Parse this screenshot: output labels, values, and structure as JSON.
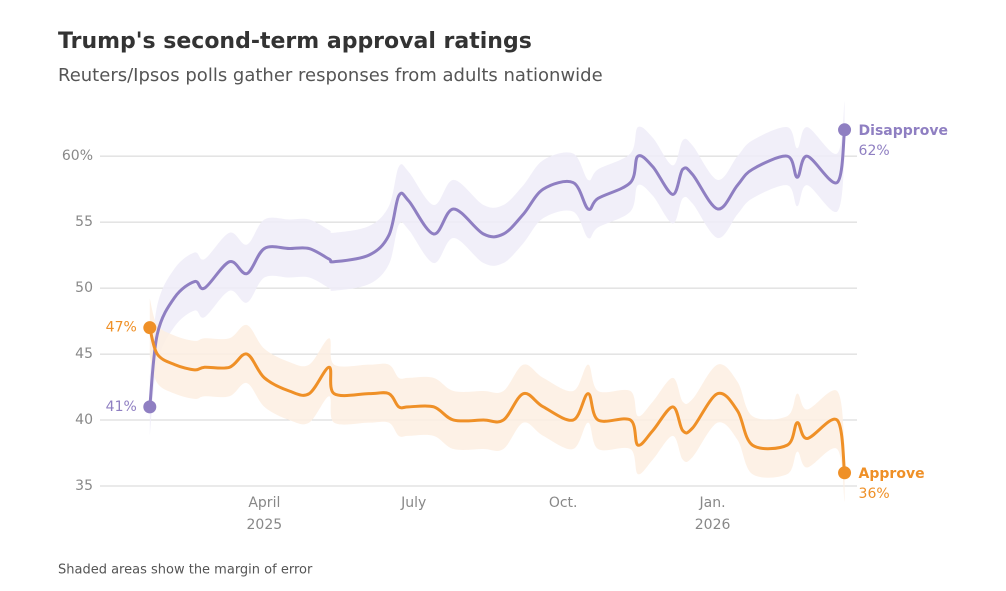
{
  "chart_data": {
    "type": "line",
    "title": "Trump's second-term approval ratings",
    "subtitle": "Reuters/Ipsos polls gather responses from adults nationwide",
    "note": "Shaded areas show the margin of error",
    "x": [
      1.7,
      1.85,
      2.2,
      2.6,
      2.8,
      3.3,
      3.65,
      4.0,
      4.5,
      4.9,
      5.3,
      5.4,
      6.1,
      6.5,
      6.7,
      6.9,
      7.4,
      7.8,
      8.4,
      8.8,
      9.2,
      9.6,
      10.2,
      10.5,
      10.7,
      11.35,
      11.5,
      11.8,
      12.2,
      12.4,
      12.6,
      13.1,
      13.5,
      13.8,
      14.5,
      14.7,
      14.9,
      15.5,
      15.65
    ],
    "xlim": [
      0.7,
      15.9
    ],
    "xticks": [
      {
        "value": 4,
        "label": "April 2025"
      },
      {
        "value": 7,
        "label": "July"
      },
      {
        "value": 10,
        "label": "Oct."
      },
      {
        "value": 13,
        "label": "Jan. 2026"
      }
    ],
    "ylim": [
      35,
      63.5
    ],
    "yticks": [
      35,
      40,
      45,
      50,
      55,
      {
        "value": 60,
        "label": "60%"
      }
    ],
    "grid": true,
    "series": [
      {
        "name": "Disapprove",
        "color": "#8f7fc2",
        "band_color": "#efecf8",
        "error": 2.2,
        "values": [
          41,
          46.5,
          49.3,
          50.5,
          50,
          52,
          51.1,
          53,
          53,
          53,
          52.2,
          52,
          52.5,
          54,
          57,
          56.6,
          54.1,
          56,
          54.1,
          54.1,
          55.6,
          57.5,
          58,
          56,
          56.8,
          58,
          60,
          59.2,
          57.1,
          59,
          58.6,
          56,
          57.8,
          59,
          60,
          58.4,
          60,
          58,
          62
        ],
        "value_labels": [
          "41%",
          null,
          null,
          null,
          null,
          null,
          null,
          null,
          null,
          null,
          null,
          null,
          null,
          null,
          null,
          null,
          null,
          null,
          null,
          null,
          null,
          null,
          null,
          null,
          null,
          null,
          null,
          null,
          null,
          null,
          null,
          null,
          null,
          null,
          null,
          null,
          null,
          null,
          "62%"
        ]
      },
      {
        "name": "Approve",
        "color": "#ef9027",
        "band_color": "#fdefe2",
        "error": 2.2,
        "values": [
          47,
          45,
          44.2,
          43.8,
          44,
          44,
          45,
          43.2,
          42.2,
          42,
          44,
          42,
          42,
          42,
          41,
          41,
          41,
          40,
          40,
          40,
          42,
          41,
          40,
          42,
          40,
          40,
          38.1,
          39.2,
          41,
          39.2,
          39.4,
          42,
          40.7,
          38.1,
          38.1,
          39.8,
          38.6,
          40,
          36
        ],
        "value_labels": [
          "47%",
          null,
          null,
          null,
          null,
          null,
          null,
          null,
          null,
          null,
          null,
          null,
          null,
          null,
          null,
          null,
          null,
          null,
          null,
          null,
          null,
          null,
          null,
          null,
          null,
          null,
          null,
          null,
          null,
          null,
          null,
          null,
          null,
          null,
          null,
          null,
          null,
          null,
          "36%"
        ]
      }
    ]
  }
}
